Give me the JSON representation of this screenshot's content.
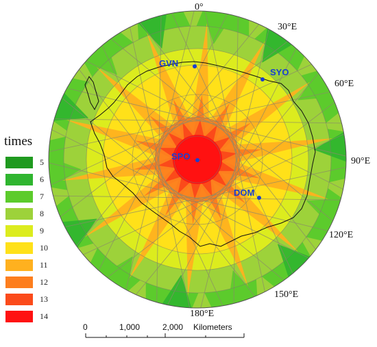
{
  "map": {
    "legend_title": "times",
    "legend": [
      {
        "label": "5",
        "color": "#1f9a1f"
      },
      {
        "label": "6",
        "color": "#2fb52f"
      },
      {
        "label": "7",
        "color": "#5ccb2c"
      },
      {
        "label": "8",
        "color": "#9dd23a"
      },
      {
        "label": "9",
        "color": "#dcec1e"
      },
      {
        "label": "10",
        "color": "#ffe119"
      },
      {
        "label": "11",
        "color": "#ffb11f"
      },
      {
        "label": "12",
        "color": "#fd7e1e"
      },
      {
        "label": "13",
        "color": "#fb4a1a"
      },
      {
        "label": "14",
        "color": "#ff1111"
      }
    ],
    "longitude_labels": {
      "lon_0": "0°",
      "lon_30": "30°E",
      "lon_60": "60°E",
      "lon_90": "90°E",
      "lon_120": "120°E",
      "lon_150": "150°E",
      "lon_180": "180°E"
    },
    "stations": [
      {
        "name": "GVN",
        "color": "#1a3fcf"
      },
      {
        "name": "SYO",
        "color": "#1a3fcf"
      },
      {
        "name": "SPO",
        "color": "#1a3fcf"
      },
      {
        "name": "DOM",
        "color": "#1a3fcf"
      }
    ],
    "scale_bar": {
      "tick_0": "0",
      "tick_1": "1,000",
      "tick_2": "2,000",
      "unit": "Kilometers"
    }
  }
}
